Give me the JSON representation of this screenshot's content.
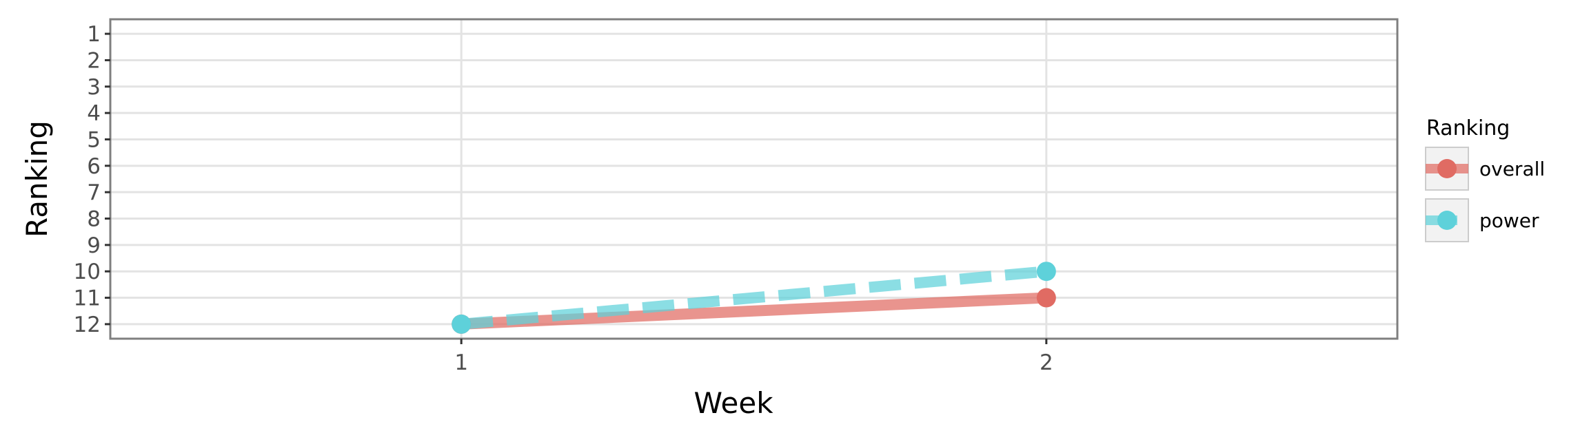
{
  "chart_data": {
    "type": "line",
    "xlabel": "Week",
    "ylabel": "Ranking",
    "x": [
      1,
      2
    ],
    "x_ticks": [
      "1",
      "2"
    ],
    "xlim": [
      0.4,
      2.6
    ],
    "y_ticks": [
      "1",
      "2",
      "3",
      "4",
      "5",
      "6",
      "7",
      "8",
      "9",
      "10",
      "11",
      "12"
    ],
    "ylim": [
      12.55,
      0.45
    ],
    "y_reversed": true,
    "grid": true,
    "legend": {
      "title": "Ranking",
      "position": "right"
    },
    "series": [
      {
        "name": "overall",
        "values": [
          12,
          11
        ],
        "color": "#e06b63",
        "line_style": "solid"
      },
      {
        "name": "power",
        "values": [
          12,
          10
        ],
        "color": "#5ed1da",
        "line_style": "dashed"
      }
    ]
  }
}
